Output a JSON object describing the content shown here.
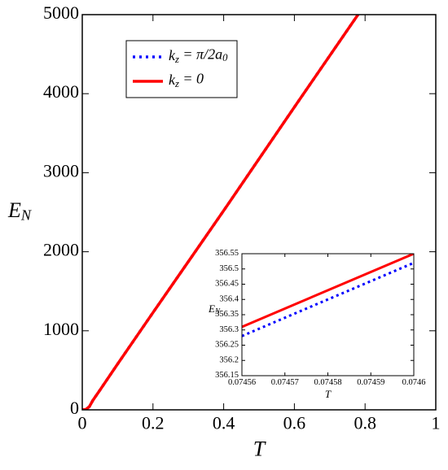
{
  "chart_data": [
    {
      "type": "line",
      "xlabel": "T",
      "ylabel": "EN",
      "xlim": [
        0,
        1
      ],
      "xticks": [
        0,
        0.2,
        0.4,
        0.6,
        0.8,
        1
      ],
      "ylim": [
        0,
        5000
      ],
      "yticks": [
        0,
        1000,
        2000,
        3000,
        4000,
        5000
      ],
      "legend": "upper left",
      "x": [
        0,
        0.01,
        0.02,
        0.03,
        0.05,
        0.1,
        0.2,
        0.4,
        0.6,
        0.78
      ],
      "series": [
        {
          "name": "kz = π/2a0",
          "color": "#0000ff",
          "dash": "dotted",
          "values": [
            0,
            5,
            40,
            120,
            250,
            580,
            1230,
            2520,
            3830,
            5000
          ]
        },
        {
          "name": "kz = 0",
          "color": "#ff0000",
          "dash": "solid",
          "values": [
            0,
            5,
            40,
            120,
            250,
            580,
            1230,
            2520,
            3830,
            5000
          ]
        }
      ]
    },
    {
      "type": "line",
      "xlabel": "T",
      "ylabel": "EN",
      "xlim": [
        0.07456,
        0.0746
      ],
      "xticks": [
        0.07456,
        0.07457,
        0.07458,
        0.07459,
        0.0746
      ],
      "ylim": [
        356.15,
        356.55
      ],
      "yticks": [
        356.15,
        356.2,
        356.25,
        356.3,
        356.35,
        356.4,
        356.45,
        356.5,
        356.55
      ],
      "x": [
        0.07456,
        0.0746
      ],
      "series": [
        {
          "color": "#0000ff",
          "dash": "dotted",
          "values": [
            356.28,
            356.52
          ]
        },
        {
          "color": "#ff0000",
          "dash": "solid",
          "values": [
            356.31,
            356.55
          ]
        }
      ]
    }
  ]
}
